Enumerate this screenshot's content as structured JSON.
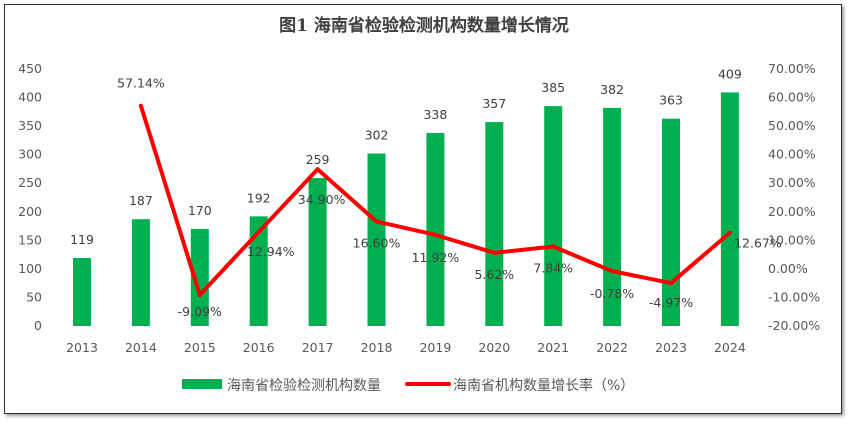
{
  "chart_data": {
    "type": "bar+line",
    "title": "图1 海南省检验检测机构数量增长情况",
    "categories": [
      "2013",
      "2014",
      "2015",
      "2016",
      "2017",
      "2018",
      "2019",
      "2020",
      "2021",
      "2022",
      "2023",
      "2024"
    ],
    "series": [
      {
        "name": "海南省检验检测机构数量",
        "type": "bar",
        "axis": "left",
        "color": "#00B050",
        "values": [
          119,
          187,
          170,
          192,
          259,
          302,
          338,
          357,
          385,
          382,
          363,
          409
        ]
      },
      {
        "name": "海南省机构数量增长率（%）",
        "type": "line",
        "axis": "right",
        "color": "#FF0000",
        "values": [
          null,
          57.14,
          -9.09,
          12.94,
          34.9,
          16.6,
          11.92,
          5.62,
          7.84,
          -0.78,
          -4.97,
          12.67
        ]
      }
    ],
    "left_axis": {
      "min": 0,
      "max": 450,
      "step": 50,
      "ticks": [
        "0",
        "50",
        "100",
        "150",
        "200",
        "250",
        "300",
        "350",
        "400",
        "450"
      ]
    },
    "right_axis": {
      "min": -20,
      "max": 70,
      "step": 10,
      "ticks": [
        "-20.00%",
        "-10.00%",
        "0.00%",
        "10.00%",
        "20.00%",
        "30.00%",
        "40.00%",
        "50.00%",
        "60.00%",
        "70.00%"
      ]
    },
    "bar_labels": [
      "119",
      "187",
      "170",
      "192",
      "259",
      "302",
      "338",
      "357",
      "385",
      "382",
      "363",
      "409"
    ],
    "line_labels": [
      "",
      "57.14%",
      "-9.09%",
      "12.94%",
      "34.90%",
      "16.60%",
      "11.92%",
      "5.62%",
      "7.84%",
      "-0.78%",
      "-4.97%",
      "12.67%"
    ],
    "grid": false,
    "legend": "bottom"
  }
}
